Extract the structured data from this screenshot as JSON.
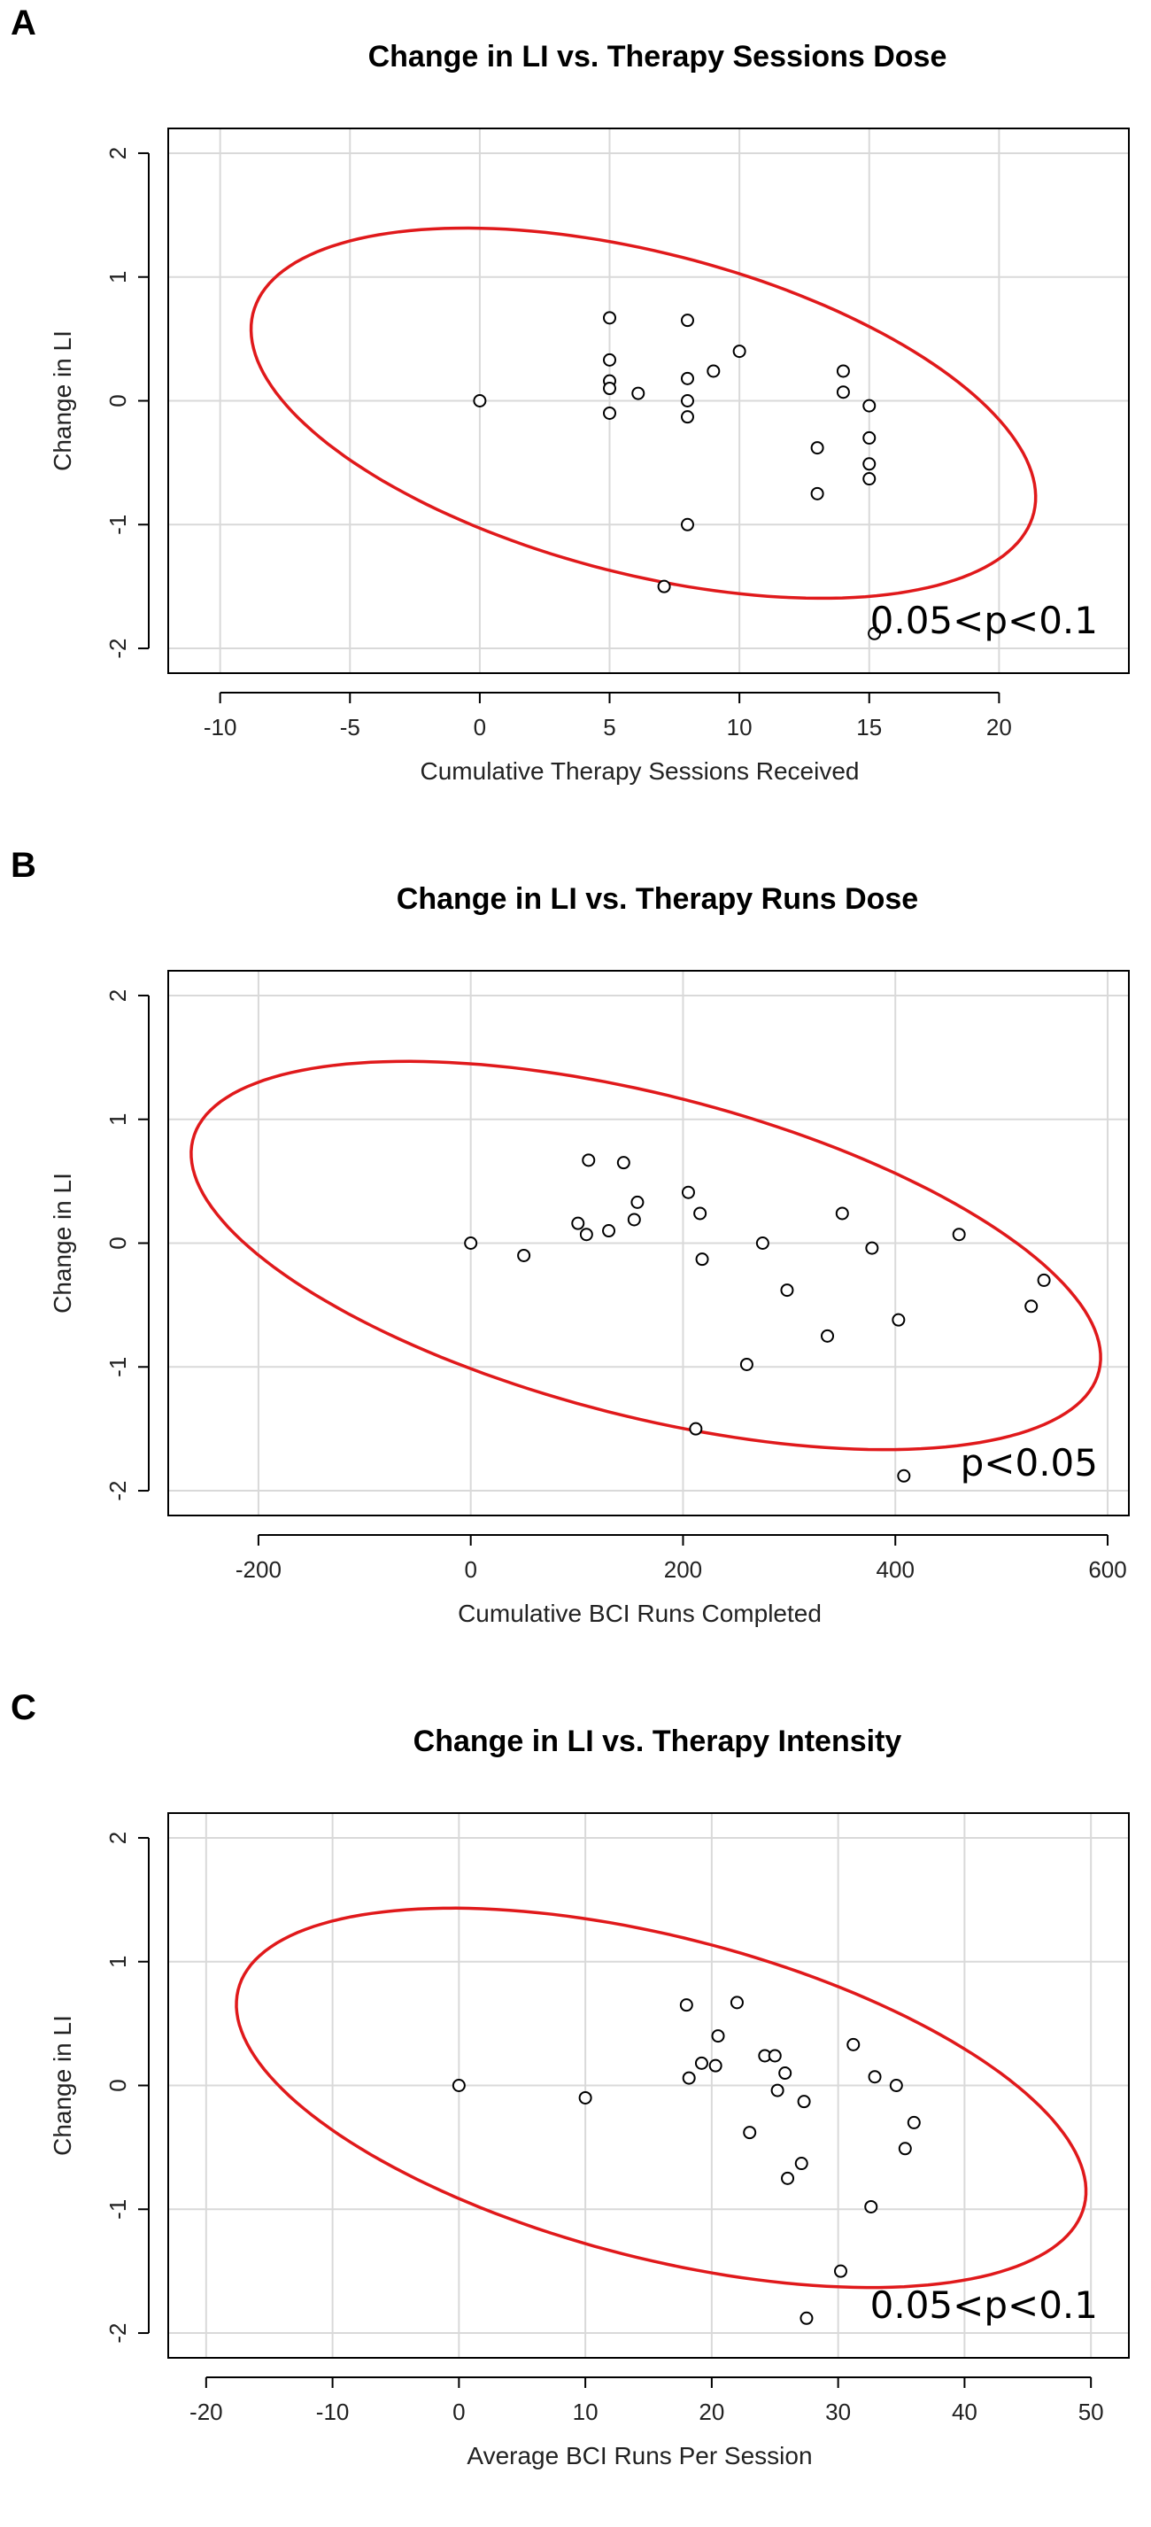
{
  "chart_data": [
    {
      "type": "scatter",
      "panel_label": "A",
      "title": "Change in LI vs. Therapy Sessions Dose",
      "xlabel": "Cumulative Therapy Sessions Received",
      "ylabel": "Change in LI",
      "xlim": [
        -12,
        25
      ],
      "ylim": [
        -2.2,
        2.2
      ],
      "xticks": [
        -10,
        -5,
        0,
        5,
        10,
        15,
        20
      ],
      "yticks": [
        -2,
        -1,
        0,
        1,
        2
      ],
      "grid": true,
      "annotation": "0.05<p<0.1",
      "ellipse": {
        "center": [
          6.3,
          -0.1
        ],
        "semi_axes": [
          15.5,
          1.3
        ],
        "tilt_deg": -14
      },
      "points": [
        {
          "x": 0,
          "y": 0
        },
        {
          "x": 5,
          "y": 0.67
        },
        {
          "x": 5,
          "y": 0.33
        },
        {
          "x": 5,
          "y": 0.16
        },
        {
          "x": 5,
          "y": 0.1
        },
        {
          "x": 5,
          "y": -0.1
        },
        {
          "x": 6.1,
          "y": 0.06
        },
        {
          "x": 7.1,
          "y": -1.5
        },
        {
          "x": 8,
          "y": 0.65
        },
        {
          "x": 8,
          "y": 0.18
        },
        {
          "x": 8,
          "y": 0
        },
        {
          "x": 8,
          "y": -0.13
        },
        {
          "x": 8,
          "y": -1.0
        },
        {
          "x": 9,
          "y": 0.24
        },
        {
          "x": 10,
          "y": 0.4
        },
        {
          "x": 13,
          "y": -0.38
        },
        {
          "x": 13,
          "y": -0.75
        },
        {
          "x": 14,
          "y": 0.24
        },
        {
          "x": 14,
          "y": 0.07
        },
        {
          "x": 15,
          "y": -0.04
        },
        {
          "x": 15,
          "y": -0.3
        },
        {
          "x": 15,
          "y": -0.51
        },
        {
          "x": 15,
          "y": -0.63
        },
        {
          "x": 15.2,
          "y": -1.88
        }
      ]
    },
    {
      "type": "scatter",
      "panel_label": "B",
      "title": "Change in LI vs. Therapy Runs Dose",
      "xlabel": "Cumulative BCI Runs Completed",
      "ylabel": "Change in LI",
      "xlim": [
        -285,
        620
      ],
      "ylim": [
        -2.2,
        2.2
      ],
      "xticks": [
        -200,
        0,
        200,
        400,
        600
      ],
      "yticks": [
        -2,
        -1,
        0,
        1,
        2
      ],
      "grid": true,
      "annotation": "p<0.05",
      "ellipse": {
        "center": [
          165,
          -0.1
        ],
        "semi_axes": [
          440,
          1.3
        ],
        "tilt_deg": -14
      },
      "points": [
        {
          "x": 0,
          "y": 0
        },
        {
          "x": 50,
          "y": -0.1
        },
        {
          "x": 101,
          "y": 0.16
        },
        {
          "x": 109,
          "y": 0.07
        },
        {
          "x": 111,
          "y": 0.67
        },
        {
          "x": 130,
          "y": 0.1
        },
        {
          "x": 144,
          "y": 0.65
        },
        {
          "x": 154,
          "y": 0.19
        },
        {
          "x": 157,
          "y": 0.33
        },
        {
          "x": 205,
          "y": 0.41
        },
        {
          "x": 212,
          "y": -1.5
        },
        {
          "x": 216,
          "y": 0.24
        },
        {
          "x": 218,
          "y": -0.13
        },
        {
          "x": 260,
          "y": -0.98
        },
        {
          "x": 275,
          "y": 0
        },
        {
          "x": 298,
          "y": -0.38
        },
        {
          "x": 336,
          "y": -0.75
        },
        {
          "x": 350,
          "y": 0.24
        },
        {
          "x": 378,
          "y": -0.04
        },
        {
          "x": 403,
          "y": -0.62
        },
        {
          "x": 408,
          "y": -1.88
        },
        {
          "x": 460,
          "y": 0.07
        },
        {
          "x": 528,
          "y": -0.51
        },
        {
          "x": 540,
          "y": -0.3
        }
      ]
    },
    {
      "type": "scatter",
      "panel_label": "C",
      "title": "Change in LI vs. Therapy Intensity",
      "xlabel": "Average BCI Runs Per Session",
      "ylabel": "Change in LI",
      "xlim": [
        -23,
        53
      ],
      "ylim": [
        -2.2,
        2.2
      ],
      "xticks": [
        -20,
        -10,
        0,
        10,
        20,
        30,
        40,
        50
      ],
      "yticks": [
        -2,
        -1,
        0,
        1,
        2
      ],
      "grid": true,
      "annotation": "0.05<p<0.1",
      "ellipse": {
        "center": [
          16,
          -0.1
        ],
        "semi_axes": [
          34.5,
          1.3
        ],
        "tilt_deg": -14
      },
      "points": [
        {
          "x": 0,
          "y": 0
        },
        {
          "x": 10,
          "y": -0.1
        },
        {
          "x": 18,
          "y": 0.65
        },
        {
          "x": 18.2,
          "y": 0.06
        },
        {
          "x": 19.2,
          "y": 0.18
        },
        {
          "x": 20.3,
          "y": 0.16
        },
        {
          "x": 20.5,
          "y": 0.4
        },
        {
          "x": 22,
          "y": 0.67
        },
        {
          "x": 23,
          "y": -0.38
        },
        {
          "x": 24.2,
          "y": 0.24
        },
        {
          "x": 25,
          "y": 0.24
        },
        {
          "x": 25.2,
          "y": -0.04
        },
        {
          "x": 25.8,
          "y": 0.1
        },
        {
          "x": 26,
          "y": -0.75
        },
        {
          "x": 27.1,
          "y": -0.63
        },
        {
          "x": 27.3,
          "y": -0.13
        },
        {
          "x": 27.5,
          "y": -1.88
        },
        {
          "x": 30.2,
          "y": -1.5
        },
        {
          "x": 31.2,
          "y": 0.33
        },
        {
          "x": 32.6,
          "y": -0.98
        },
        {
          "x": 32.9,
          "y": 0.07
        },
        {
          "x": 34.6,
          "y": 0
        },
        {
          "x": 35.3,
          "y": -0.51
        },
        {
          "x": 36,
          "y": -0.3
        }
      ]
    }
  ]
}
